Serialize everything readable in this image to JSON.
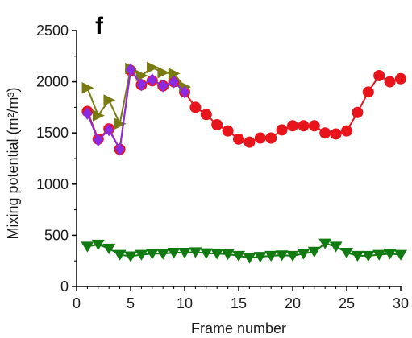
{
  "chart_data": {
    "type": "line",
    "panel_label": "f",
    "xlabel": "Frame number",
    "ylabel": "Mixing potential (m²/m³)",
    "xlim": [
      0,
      30
    ],
    "ylim": [
      0,
      2500
    ],
    "x_ticks": [
      0,
      5,
      10,
      15,
      20,
      25,
      30
    ],
    "y_ticks": [
      0,
      500,
      1000,
      1500,
      2000,
      2500
    ],
    "grid": false,
    "series": [
      {
        "marker": "circle",
        "color": "#e8141c",
        "x": [
          1,
          2,
          3,
          4,
          5,
          6,
          7,
          8,
          9,
          10,
          11,
          12,
          13,
          14,
          15,
          16,
          17,
          18,
          19,
          20,
          21,
          22,
          23,
          24,
          25,
          26,
          27,
          28,
          29,
          30
        ],
        "y": [
          1710,
          1440,
          1540,
          1340,
          2110,
          1970,
          2010,
          1960,
          2000,
          1900,
          1750,
          1680,
          1580,
          1520,
          1440,
          1410,
          1450,
          1450,
          1530,
          1570,
          1570,
          1570,
          1500,
          1490,
          1520,
          1700,
          1900,
          2060,
          2000,
          2030
        ]
      },
      {
        "marker": "diamond",
        "color": "#8a2be2",
        "x": [
          1,
          2,
          3,
          4,
          5,
          6,
          7,
          8,
          9,
          10
        ],
        "y": [
          1690,
          1430,
          1530,
          1340,
          2120,
          1970,
          2020,
          1960,
          2000,
          1900
        ]
      },
      {
        "marker": "triangle-right",
        "color": "#7a7a12",
        "x": [
          1,
          2,
          3,
          4,
          5,
          6,
          7,
          8,
          9,
          10
        ],
        "y": [
          1940,
          1670,
          1820,
          1590,
          2130,
          2060,
          2140,
          2090,
          2080,
          1950
        ]
      },
      {
        "marker": "triangle-down",
        "color": "#117a11",
        "x": [
          1,
          2,
          3,
          4,
          5,
          6,
          7,
          8,
          9,
          10,
          11,
          12,
          13,
          14,
          15,
          16,
          17,
          18,
          19,
          20,
          21,
          22,
          23,
          24,
          25,
          26,
          27,
          28,
          29,
          30
        ],
        "y": [
          390,
          410,
          370,
          310,
          295,
          310,
          320,
          320,
          330,
          330,
          335,
          325,
          320,
          315,
          300,
          280,
          290,
          300,
          305,
          300,
          320,
          340,
          420,
          390,
          330,
          300,
          300,
          310,
          320,
          310
        ]
      }
    ]
  }
}
